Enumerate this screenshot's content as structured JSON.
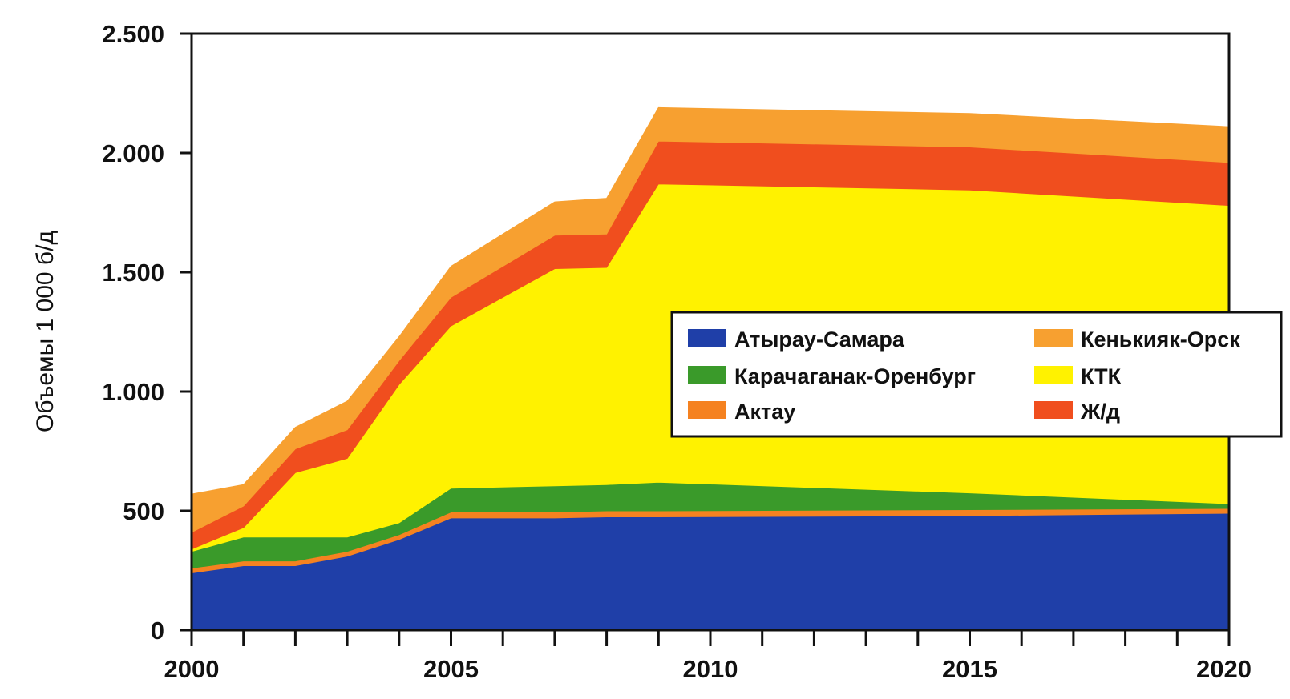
{
  "chart_data": {
    "type": "area",
    "stacked": true,
    "title": "",
    "xlabel": "",
    "ylabel": "Объемы 1 000 б/д",
    "xlim": [
      2000,
      2020
    ],
    "ylim": [
      0,
      2500
    ],
    "x_ticks": [
      2000,
      2005,
      2010,
      2015,
      2020
    ],
    "x_tick_labels": [
      "2000",
      "2005",
      "2010",
      "2015",
      "2020"
    ],
    "y_ticks": [
      0,
      500,
      1000,
      1500,
      2000,
      2500
    ],
    "y_tick_labels": [
      "0",
      "500",
      "1.000",
      "1.500",
      "2.000",
      "2.500"
    ],
    "grid": false,
    "legend_position": "center-right",
    "x": [
      2000,
      2001,
      2002,
      2003,
      2004,
      2005,
      2007,
      2008,
      2009,
      2015,
      2020
    ],
    "series": [
      {
        "name": "Атырау-Самара",
        "color": "#1f3fa8",
        "values": [
          240,
          270,
          270,
          310,
          380,
          470,
          470,
          475,
          475,
          480,
          490
        ]
      },
      {
        "name": "Актау",
        "color": "#f58220",
        "values": [
          20,
          20,
          20,
          20,
          20,
          25,
          25,
          25,
          25,
          25,
          20
        ]
      },
      {
        "name": "Карачаганак-Оренбург",
        "color": "#3a9a2a",
        "values": [
          70,
          100,
          100,
          60,
          50,
          100,
          110,
          110,
          120,
          70,
          20
        ]
      },
      {
        "name": "КТК",
        "color": "#fff200",
        "values": [
          10,
          40,
          270,
          330,
          580,
          680,
          910,
          910,
          1250,
          1270,
          1250
        ]
      },
      {
        "name": "Ж/д",
        "color": "#f04e1e",
        "values": [
          70,
          90,
          100,
          120,
          100,
          120,
          140,
          140,
          180,
          180,
          180
        ]
      },
      {
        "name": "Кенькияк-Орск",
        "color": "#f7a030",
        "values": [
          160,
          90,
          90,
          120,
          100,
          130,
          140,
          150,
          140,
          140,
          150
        ]
      }
    ],
    "legend": {
      "entries": [
        {
          "label": "Атырау-Самара",
          "color": "#1f3fa8"
        },
        {
          "label": "Карачаганак-Оренбург",
          "color": "#3a9a2a"
        },
        {
          "label": "Актау",
          "color": "#f58220"
        },
        {
          "label": "Кенькияк-Орск",
          "color": "#f7a030"
        },
        {
          "label": "КТК",
          "color": "#fff200"
        },
        {
          "label": "Ж/д",
          "color": "#f04e1e"
        }
      ]
    }
  }
}
